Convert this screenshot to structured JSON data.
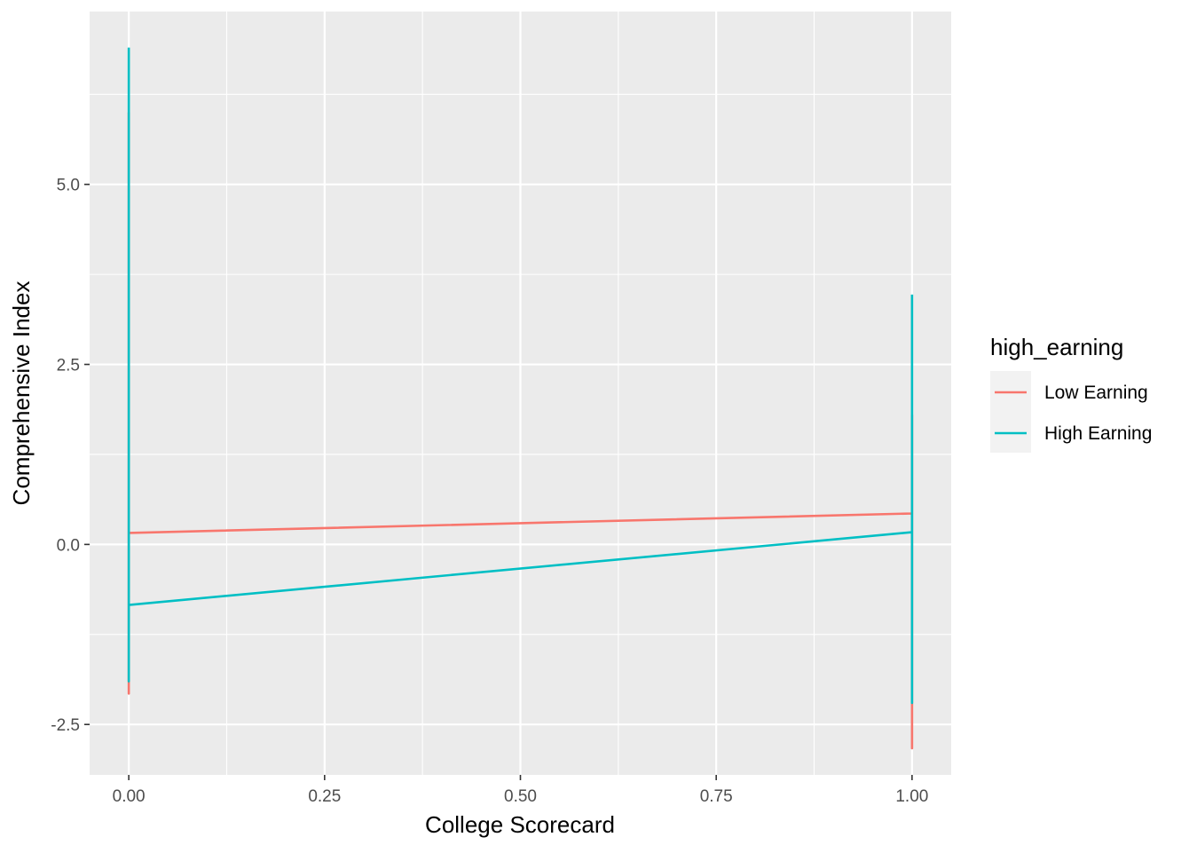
{
  "chart_data": {
    "type": "line",
    "title": "",
    "xlabel": "College Scorecard",
    "ylabel": "Comprehensive Index",
    "xlim": [
      -0.05,
      1.05
    ],
    "ylim": [
      -3.2,
      7.4
    ],
    "x_ticks": [
      0,
      0.25,
      0.5,
      0.75,
      1
    ],
    "x_tick_labels": [
      "0.00",
      "0.25",
      "0.50",
      "0.75",
      "1.00"
    ],
    "x_minor_ticks": [
      0.125,
      0.375,
      0.625,
      0.875
    ],
    "y_ticks": [
      -2.5,
      0,
      2.5,
      5
    ],
    "y_tick_labels": [
      "-2.5",
      "0.0",
      "2.5",
      "5.0"
    ],
    "y_minor_ticks": [
      -1.25,
      1.25,
      3.75,
      6.25
    ],
    "grid": true,
    "legend": {
      "title": "high_earning",
      "position": "right"
    },
    "series": [
      {
        "name": "Low Earning",
        "color": "#F8766D",
        "points": [
          {
            "x": 0,
            "y": 6.0
          },
          {
            "x": 0,
            "y": -2.07
          },
          {
            "x": 0,
            "y": 3.6
          },
          {
            "x": 0,
            "y": 0.16
          },
          {
            "x": 1,
            "y": 0.43
          },
          {
            "x": 1,
            "y": -2.83
          },
          {
            "x": 1,
            "y": 1.8
          }
        ]
      },
      {
        "name": "High Earning",
        "color": "#00BFC4",
        "points": [
          {
            "x": 0,
            "y": 6.9
          },
          {
            "x": 0,
            "y": -1.9
          },
          {
            "x": 0,
            "y": 3.4
          },
          {
            "x": 0,
            "y": -0.84
          },
          {
            "x": 1,
            "y": 0.17
          },
          {
            "x": 1,
            "y": -2.2
          },
          {
            "x": 1,
            "y": 3.47
          }
        ]
      }
    ]
  },
  "colors": {
    "panel_background": "#EBEBEB",
    "grid_major": "#FFFFFF",
    "low_earning": "#F8766D",
    "high_earning": "#00BFC4"
  }
}
